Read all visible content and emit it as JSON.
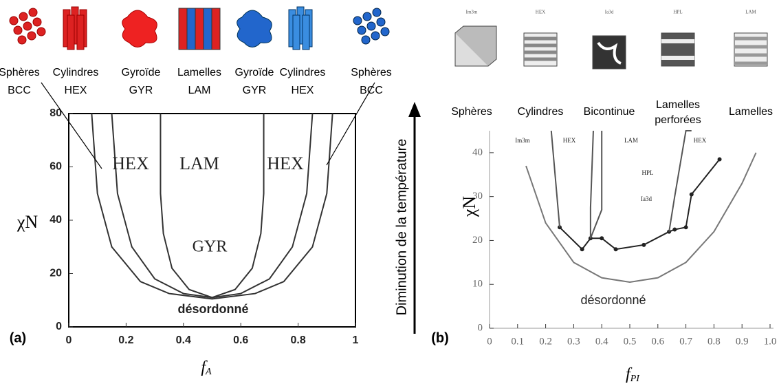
{
  "chart_data": [
    {
      "type": "line",
      "panel_label": "(a)",
      "x_label": {
        "base": "f",
        "sub": "A"
      },
      "y_label": "χN",
      "xlim": [
        0,
        1
      ],
      "xticks": [
        0,
        0.2,
        0.4,
        0.6,
        0.8,
        1
      ],
      "ylim": [
        0,
        80
      ],
      "yticks": [
        0,
        20,
        40,
        60,
        80
      ],
      "structures": [
        {
          "name": "Sphères",
          "code": "BCC"
        },
        {
          "name": "Cylindres",
          "code": "HEX"
        },
        {
          "name": "Gyroïde",
          "code": "GYR"
        },
        {
          "name": "Lamelles",
          "code": "LAM"
        },
        {
          "name": "Gyroïde",
          "code": "GYR"
        },
        {
          "name": "Cylindres",
          "code": "HEX"
        },
        {
          "name": "Sphères",
          "code": "BCC"
        }
      ],
      "annotations": [
        "HEX",
        "LAM",
        "HEX",
        "GYR",
        "désordonné"
      ],
      "series": [
        {
          "color": "#333",
          "x": [
            0.08,
            0.1,
            0.15,
            0.25,
            0.35,
            0.5,
            0.65,
            0.75,
            0.85,
            0.9,
            0.92
          ],
          "values": [
            80,
            50,
            30,
            17,
            12.5,
            10.5,
            12.5,
            17,
            30,
            50,
            80
          ]
        },
        {
          "color": "#333",
          "x": [
            0.15,
            0.17,
            0.22,
            0.3,
            0.4,
            0.5,
            0.6,
            0.7,
            0.78,
            0.83,
            0.85
          ],
          "values": [
            80,
            50,
            30,
            18,
            12.5,
            11,
            12.5,
            18,
            30,
            50,
            80
          ]
        },
        {
          "color": "#333",
          "x": [
            0.32,
            0.32,
            0.33,
            0.36,
            0.42,
            0.5,
            0.58,
            0.64,
            0.67,
            0.68,
            0.68
          ],
          "values": [
            80,
            50,
            35,
            22,
            14,
            11,
            14,
            22,
            35,
            50,
            80
          ]
        }
      ]
    },
    {
      "type": "line",
      "panel_label": "(b)",
      "x_label": {
        "base": "f",
        "sub": "PI"
      },
      "y_label": "χN",
      "xlim": [
        0,
        1.05
      ],
      "xticks": [
        0,
        0.1,
        0.2,
        0.3,
        0.4,
        0.5,
        0.6,
        0.7,
        0.8,
        0.9,
        {
          "value": 1,
          "label": "1.0"
        }
      ],
      "ylim": [
        0,
        45
      ],
      "yticks": [
        0,
        10,
        20,
        30,
        40
      ],
      "structures": [
        {
          "name": "Sphères",
          "code": "Im3m"
        },
        {
          "name": "Cylindres",
          "code": "HEX"
        },
        {
          "name": "Bicontinue",
          "code": "Ia3d"
        },
        {
          "name": "Lamelles perforées",
          "code": "HPL"
        },
        {
          "name": "Lamelles",
          "code": "LAM"
        }
      ],
      "annotations": [
        "Im3m",
        "HEX",
        "LAM",
        "HEX",
        "HPL",
        "Ia3d",
        "désordonné"
      ],
      "series": [
        {
          "color": "#777",
          "x": [
            0.13,
            0.2,
            0.3,
            0.4,
            0.5,
            0.6,
            0.7,
            0.8,
            0.9,
            0.95
          ],
          "values": [
            37,
            24,
            15,
            11.5,
            10.5,
            11.5,
            15,
            22,
            33,
            40
          ]
        },
        {
          "color": "#222",
          "markers": true,
          "x": [
            0.25,
            0.33,
            0.36,
            0.4,
            0.45,
            0.55,
            0.64,
            0.66,
            0.7,
            0.72,
            0.82
          ],
          "values": [
            23,
            18,
            20.5,
            20.5,
            18,
            19,
            22,
            22.5,
            23,
            30.5,
            38.5
          ]
        },
        {
          "color": "#555",
          "x": [
            0.22,
            0.25
          ],
          "values": [
            45,
            23
          ]
        },
        {
          "color": "#555",
          "x": [
            0.37,
            0.36,
            0.36,
            0.4,
            0.4
          ],
          "values": [
            45,
            27.5,
            20.5,
            27,
            45
          ]
        },
        {
          "color": "#555",
          "x": [
            0.64,
            0.66,
            0.7,
            0.72
          ],
          "values": [
            22,
            30,
            45,
            45
          ]
        }
      ]
    }
  ],
  "arrow_label": "Diminution de la température"
}
